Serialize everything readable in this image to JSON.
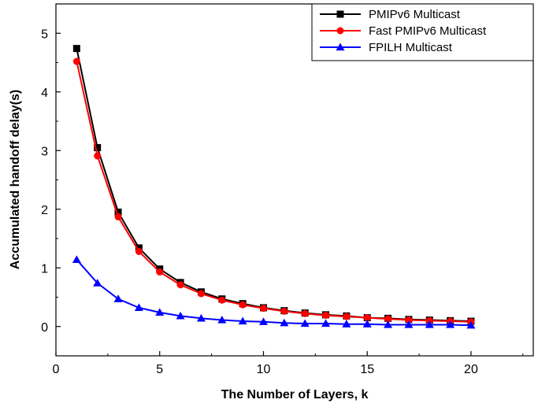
{
  "chart_data": {
    "type": "line",
    "title": "",
    "xlabel": "The Number of Layers, k",
    "ylabel": "Accumulated handoff delay(s)",
    "xlim": [
      0,
      23
    ],
    "ylim": [
      -0.5,
      5.5
    ],
    "xticks": [
      0,
      5,
      10,
      15,
      20
    ],
    "yticks": [
      0,
      1,
      2,
      3,
      4,
      5
    ],
    "x": [
      1,
      2,
      3,
      4,
      5,
      6,
      7,
      8,
      9,
      10,
      11,
      12,
      13,
      14,
      15,
      16,
      17,
      18,
      19,
      20
    ],
    "legend_position": "top-right",
    "grid": false,
    "series": [
      {
        "name": "PMIPv6 Multicast",
        "color": "#000000",
        "marker": "square",
        "values": [
          4.74,
          3.05,
          1.95,
          1.34,
          0.98,
          0.75,
          0.59,
          0.47,
          0.39,
          0.32,
          0.27,
          0.23,
          0.2,
          0.18,
          0.15,
          0.14,
          0.12,
          0.11,
          0.1,
          0.09
        ]
      },
      {
        "name": "Fast PMIPv6 Multicast",
        "color": "#ff0000",
        "marker": "circle",
        "values": [
          4.52,
          2.91,
          1.87,
          1.28,
          0.93,
          0.71,
          0.56,
          0.45,
          0.37,
          0.31,
          0.26,
          0.22,
          0.19,
          0.17,
          0.15,
          0.13,
          0.11,
          0.1,
          0.09,
          0.08
        ]
      },
      {
        "name": "FPILH Multicast",
        "color": "#0000ff",
        "marker": "triangle",
        "values": [
          1.14,
          0.74,
          0.47,
          0.32,
          0.24,
          0.18,
          0.14,
          0.11,
          0.09,
          0.08,
          0.06,
          0.05,
          0.05,
          0.04,
          0.04,
          0.03,
          0.03,
          0.03,
          0.03,
          0.02
        ]
      }
    ]
  }
}
